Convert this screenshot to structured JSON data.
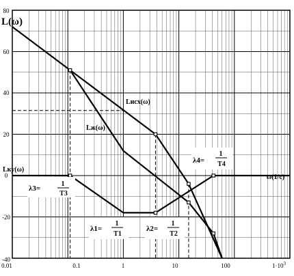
{
  "chart_data": {
    "type": "line",
    "title": "",
    "x_scale": "log",
    "xlim": [
      0.01,
      1000
    ],
    "ylim": [
      -40,
      80
    ],
    "x_ticks": [
      {
        "value": 0.01,
        "label": "0.01"
      },
      {
        "value": 0.1,
        "label": "0.1"
      },
      {
        "value": 1,
        "label": "1"
      },
      {
        "value": 10,
        "label": "10"
      },
      {
        "value": 100,
        "label": "100"
      }
    ],
    "x_tick_last": {
      "value": 1000,
      "base": "1·10",
      "exp": "3"
    },
    "y_ticks": [
      -40,
      -20,
      0,
      20,
      40,
      60,
      80
    ],
    "grid": true,
    "ylabel": "L(ω)",
    "xlabel": "ω(1/c)",
    "series": [
      {
        "name": "Lисх(ω)",
        "points": [
          [
            0.01,
            72
          ],
          [
            0.11,
            51
          ],
          [
            3.8,
            20
          ],
          [
            15,
            -4
          ],
          [
            60,
            -40
          ]
        ]
      },
      {
        "name": "Lж(ω)",
        "points": [
          [
            0.11,
            51
          ],
          [
            1,
            12
          ],
          [
            15,
            -13
          ],
          [
            42,
            -28
          ],
          [
            60,
            -40
          ]
        ]
      },
      {
        "name": "Lку(ω)",
        "points": [
          [
            0.01,
            0
          ],
          [
            0.11,
            0
          ],
          [
            1,
            -18
          ],
          [
            3.8,
            -18
          ],
          [
            42,
            0
          ],
          [
            1000,
            0
          ]
        ]
      }
    ],
    "markers": [
      [
        0.11,
        51
      ],
      [
        3.8,
        20
      ],
      [
        0.11,
        0
      ],
      [
        3.8,
        -18
      ],
      [
        15,
        -4
      ],
      [
        15,
        -13
      ],
      [
        42,
        -28
      ],
      [
        42,
        0
      ]
    ],
    "dashed_refs": {
      "horizontal": {
        "y": 31.5,
        "x_to": 1
      },
      "vertical": [
        {
          "x": 0.11,
          "y_from": 51,
          "y_to": -40
        },
        {
          "x": 3.8,
          "y_from": 20,
          "y_to": -40
        },
        {
          "x": 15,
          "y_from": -4,
          "y_to": -40
        }
      ]
    },
    "labels": {
      "lisx": "Lисх(ω)",
      "lzh": "Lж(ω)",
      "lku": "Lку(ω)"
    },
    "annotations": [
      {
        "id": "l1",
        "prefix": "λ1=",
        "num": "1",
        "den": "T1"
      },
      {
        "id": "l2",
        "prefix": "λ2=",
        "num": "1",
        "den": "T2"
      },
      {
        "id": "l3",
        "prefix": "λ3=",
        "num": "1",
        "den": "T3"
      },
      {
        "id": "l4",
        "prefix": "λ4=",
        "num": "1",
        "den": "T4"
      }
    ]
  }
}
